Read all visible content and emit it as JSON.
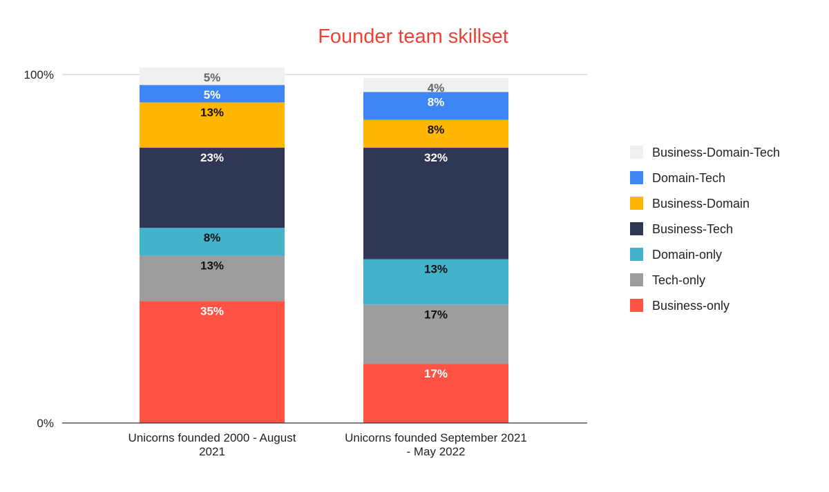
{
  "chart_data": {
    "type": "bar",
    "stacked": true,
    "title": "Founder team skillset",
    "title_color": "#ea4335",
    "categories": [
      "Unicorns founded 2000 - August 2021",
      "Unicorns founded September 2021 - May 2022"
    ],
    "category_label_lines": [
      [
        "Unicorns founded 2000 - August",
        "2021"
      ],
      [
        "Unicorns founded September 2021",
        "- May 2022"
      ]
    ],
    "y_ticks": [
      "0%",
      "100%"
    ],
    "ylim": [
      0,
      100
    ],
    "grid": "100% line only",
    "legend_position": "right",
    "series": [
      {
        "name": "Business-only",
        "color": "#ff5345",
        "label_color": "#ffffff",
        "values": [
          35,
          17
        ],
        "labels": [
          "35%",
          "17%"
        ]
      },
      {
        "name": "Tech-only",
        "color": "#9e9c9f",
        "label_color": "#111111",
        "values": [
          13,
          17
        ],
        "labels": [
          "13%",
          "17%"
        ]
      },
      {
        "name": "Domain-only",
        "color": "#42b3cb",
        "label_color": "#111111",
        "values": [
          8,
          13
        ],
        "labels": [
          "8%",
          "13%"
        ]
      },
      {
        "name": "Business-Tech",
        "color": "#2f3754",
        "label_color": "#ffffff",
        "values": [
          23,
          32
        ],
        "labels": [
          "23%",
          "32%"
        ]
      },
      {
        "name": "Business-Domain",
        "color": "#ffb703",
        "label_color": "#111111",
        "values": [
          13,
          8
        ],
        "labels": [
          "13%",
          "8%"
        ]
      },
      {
        "name": "Domain-Tech",
        "color": "#3d87f5",
        "label_color": "#ffffff",
        "values": [
          5,
          8
        ],
        "labels": [
          "5%",
          "8%"
        ]
      },
      {
        "name": "Business-Domain-Tech",
        "color": "#f0eff1",
        "label_color": "#666666",
        "values": [
          5,
          4
        ],
        "labels": [
          "5%",
          "4%"
        ]
      }
    ]
  }
}
